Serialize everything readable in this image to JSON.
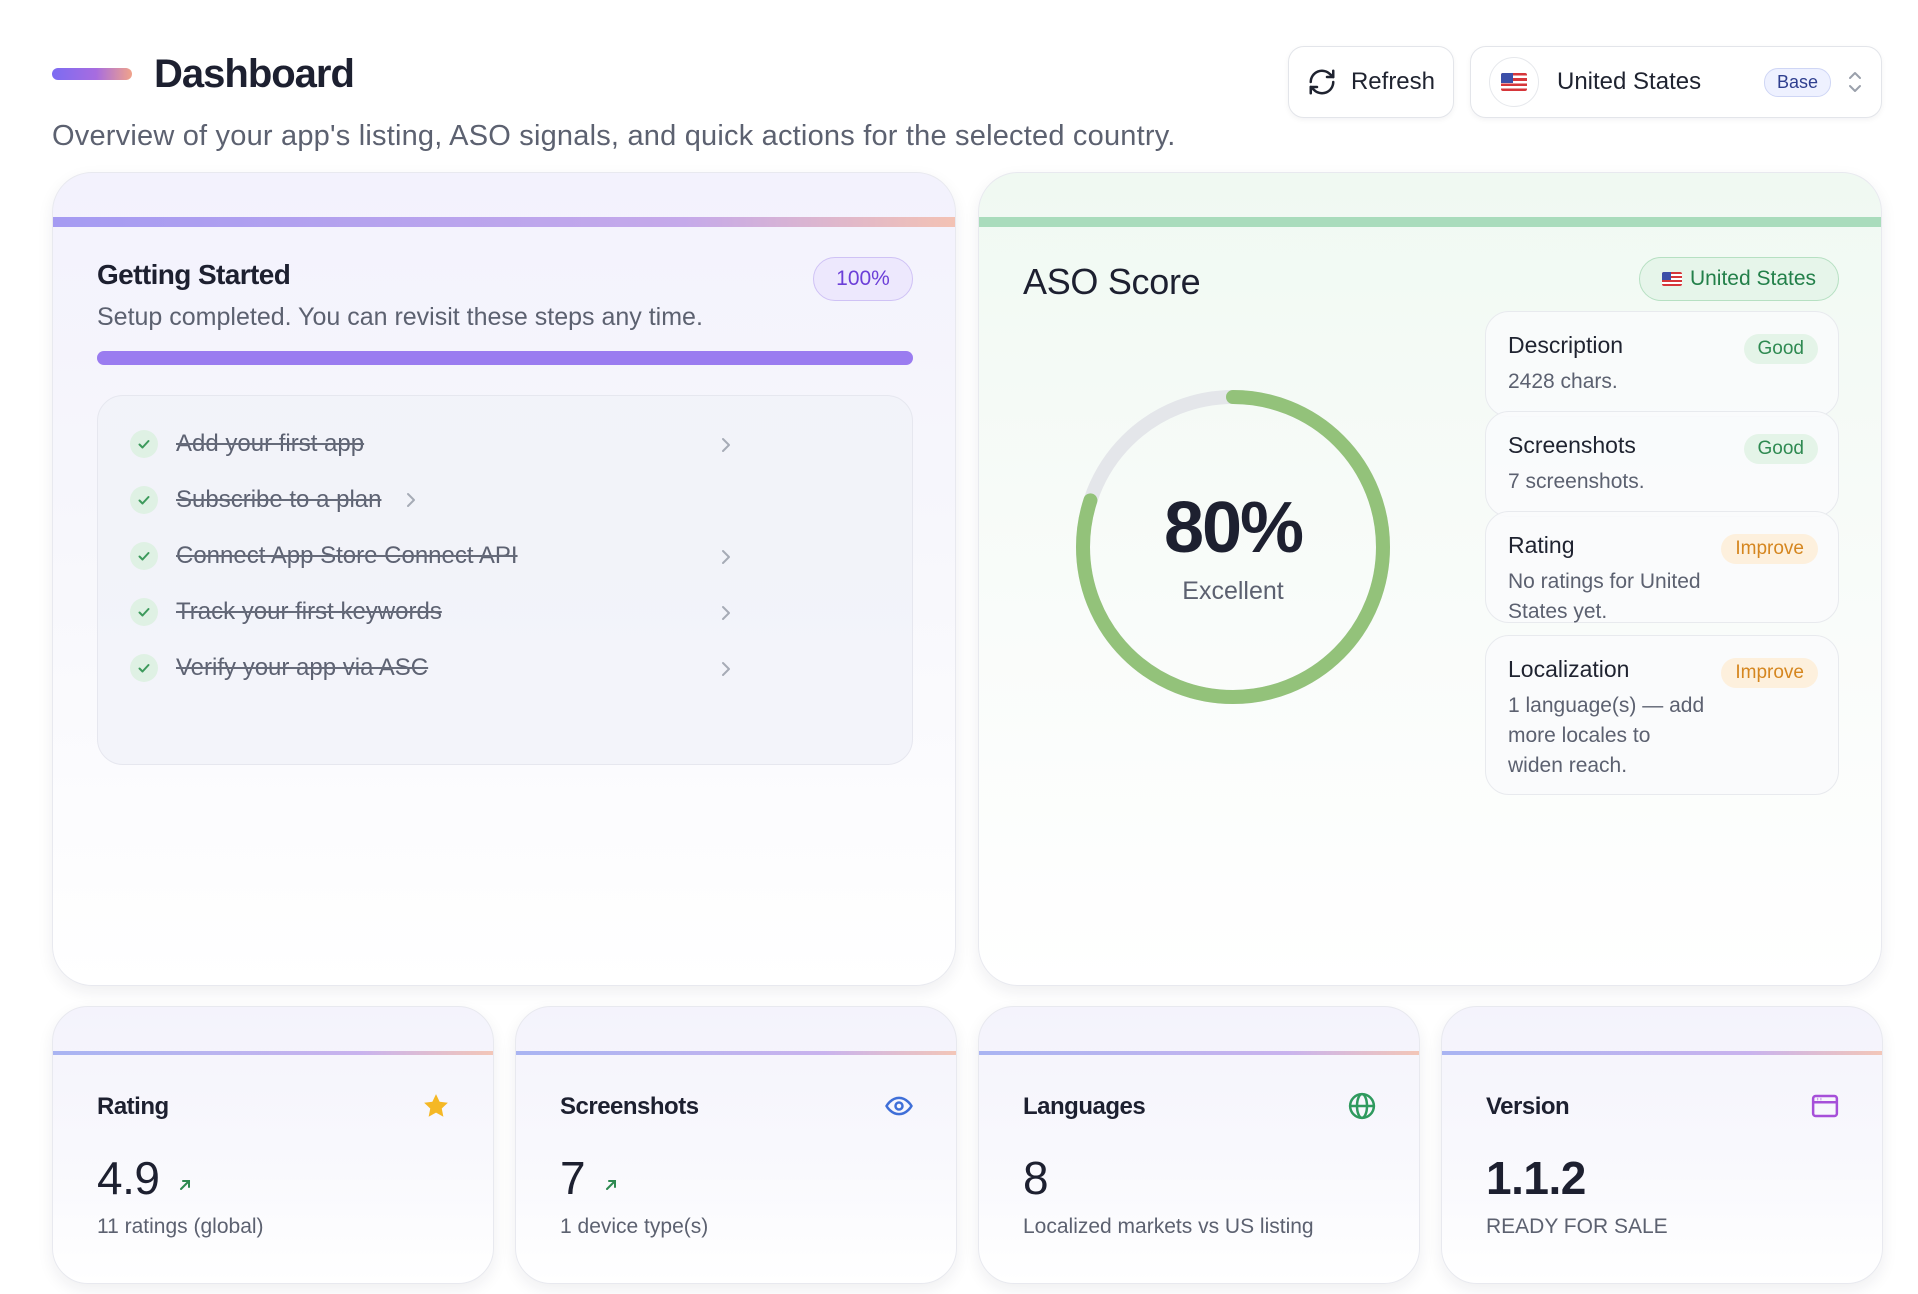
{
  "header": {
    "title": "Dashboard",
    "subtitle": "Overview of your app's listing, ASO signals, and quick actions for the selected country.",
    "refresh_label": "Refresh",
    "country": "United States",
    "country_badge": "Base"
  },
  "getting_started": {
    "title": "Getting Started",
    "subtitle": "Setup completed. You can revisit these steps any time.",
    "percent_label": "100%",
    "progress": 1.0,
    "steps": [
      {
        "label": "Add your first app",
        "done": true
      },
      {
        "label": "Subscribe to a plan",
        "done": true
      },
      {
        "label": "Connect App Store Connect API",
        "done": true
      },
      {
        "label": "Track your first keywords",
        "done": true
      },
      {
        "label": "Verify your app via ASC",
        "done": true
      }
    ]
  },
  "aso": {
    "title": "ASO Score",
    "country_badge": "United States",
    "score_label": "80%",
    "score": 0.8,
    "score_text": "Excellent",
    "metrics": [
      {
        "title": "Description",
        "desc": "2428 chars.",
        "status": "Good"
      },
      {
        "title": "Screenshots",
        "desc": "7 screenshots.",
        "status": "Good"
      },
      {
        "title": "Rating",
        "desc": "No ratings for United States yet.",
        "status": "Improve"
      },
      {
        "title": "Localization",
        "desc": "1 language(s) — add more locales to widen reach.",
        "status": "Improve"
      }
    ]
  },
  "stats": [
    {
      "title": "Rating",
      "value": "4.9",
      "note": "11 ratings (global)",
      "icon": "star-icon"
    },
    {
      "title": "Screenshots",
      "value": "7",
      "note": "1 device type(s)",
      "icon": "eye-icon"
    },
    {
      "title": "Languages",
      "value": "8",
      "note": "Localized markets vs US listing",
      "icon": "globe-icon"
    },
    {
      "title": "Version",
      "value": "1.1.2",
      "note": "READY FOR SALE",
      "icon": "browser-window-icon"
    }
  ],
  "colors": {
    "accent_purple": "#9a7cf0",
    "gauge_green": "#93c27a",
    "good_green": "#2e8a51",
    "improve_orange": "#d5861f",
    "star_yellow": "#f5b825"
  }
}
